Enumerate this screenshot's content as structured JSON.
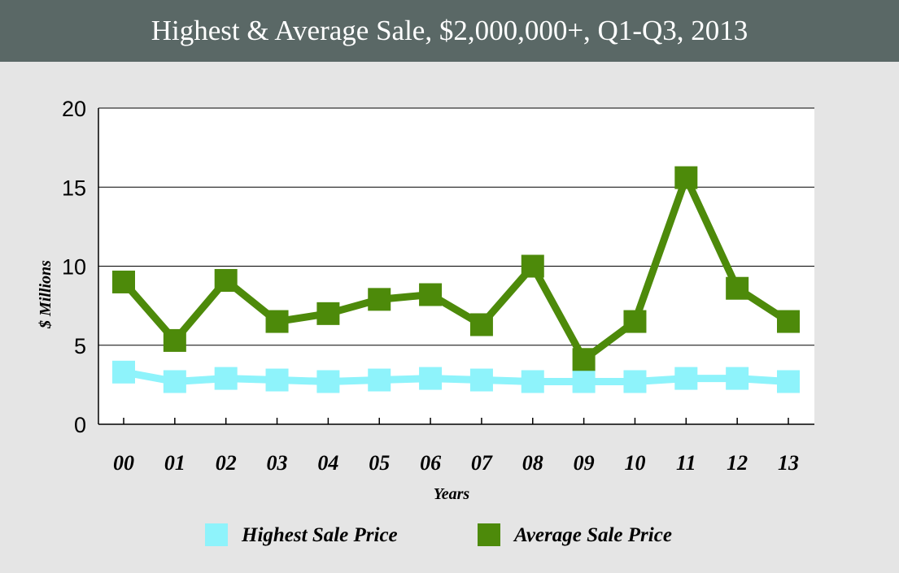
{
  "colors": {
    "title_bg": "#5a6866",
    "page_bg": "#e5e5e5",
    "plot_bg": "#ffffff",
    "highest": "#8ef3fb",
    "average": "#4d8a0a"
  },
  "chart_data": {
    "type": "line",
    "title": "Highest & Average Sale, $2,000,000+, Q1-Q3, 2013",
    "xlabel": "Years",
    "ylabel": "$ Millions",
    "categories": [
      "00",
      "01",
      "02",
      "03",
      "04",
      "05",
      "06",
      "07",
      "08",
      "09",
      "10",
      "11",
      "12",
      "13"
    ],
    "ylim": [
      0,
      20
    ],
    "yticks": [
      0,
      5,
      10,
      15,
      20
    ],
    "grid": true,
    "legend_position": "bottom",
    "series": [
      {
        "name": "Highest Sale Price",
        "color": "#8ef3fb",
        "values": [
          3.3,
          2.7,
          2.9,
          2.8,
          2.7,
          2.8,
          2.9,
          2.8,
          2.7,
          2.7,
          2.7,
          2.9,
          2.9,
          2.7
        ]
      },
      {
        "name": "Average Sale Price",
        "color": "#4d8a0a",
        "values": [
          9.0,
          5.3,
          9.1,
          6.5,
          7.0,
          7.9,
          8.2,
          6.3,
          10.0,
          4.1,
          6.5,
          15.6,
          8.6,
          6.5
        ]
      }
    ]
  }
}
